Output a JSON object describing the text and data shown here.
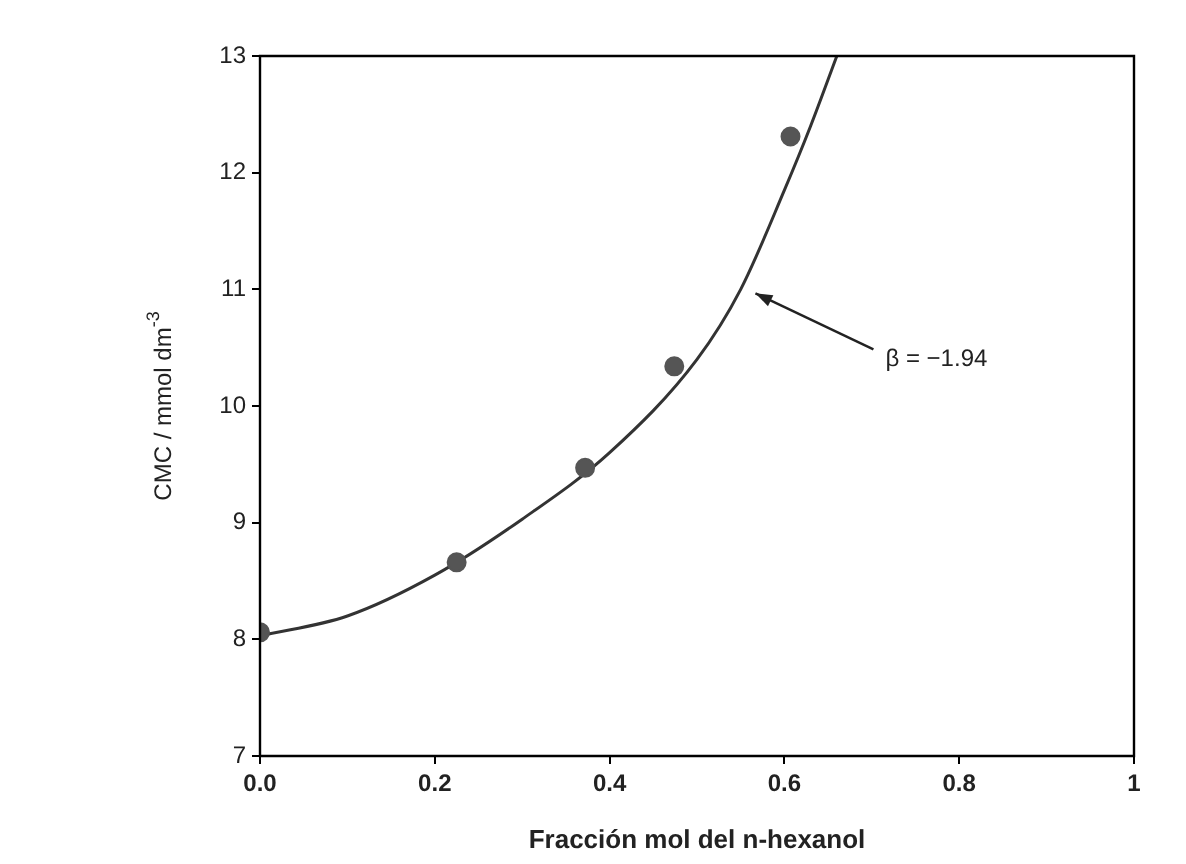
{
  "chart_data": {
    "type": "scatter",
    "xlabel": "Fracción mol del n-hexanol",
    "ylabel": "CMC / mmol dm$^{-3}$",
    "xlim": [
      0,
      1
    ],
    "xticks": [
      {
        "value": 0,
        "label": "0.0"
      },
      0.2,
      0.4,
      0.6,
      0.8,
      1
    ],
    "ylim": [
      7,
      13
    ],
    "yticks": [
      7,
      8,
      9,
      10,
      11,
      12,
      13
    ],
    "grid": false,
    "annotations": [
      {
        "text": "β = −1.94",
        "x": 0.56,
        "y": 11.0
      }
    ],
    "series": [
      {
        "color": "#555555",
        "marker": "circle",
        "x": [
          0.0,
          0.225,
          0.372,
          0.474,
          0.607
        ],
        "values": [
          8.06,
          8.66,
          9.47,
          10.34,
          12.31
        ]
      },
      {
        "type": "line",
        "color": "#333333",
        "marker": "none",
        "x": [
          0,
          0.1,
          0.2,
          0.3,
          0.4,
          0.5,
          0.55,
          0.6,
          0.63,
          0.66
        ],
        "values": [
          8.03,
          8.2,
          8.55,
          9.03,
          9.6,
          10.4,
          11.0,
          11.85,
          12.4,
          13.0
        ]
      }
    ]
  }
}
